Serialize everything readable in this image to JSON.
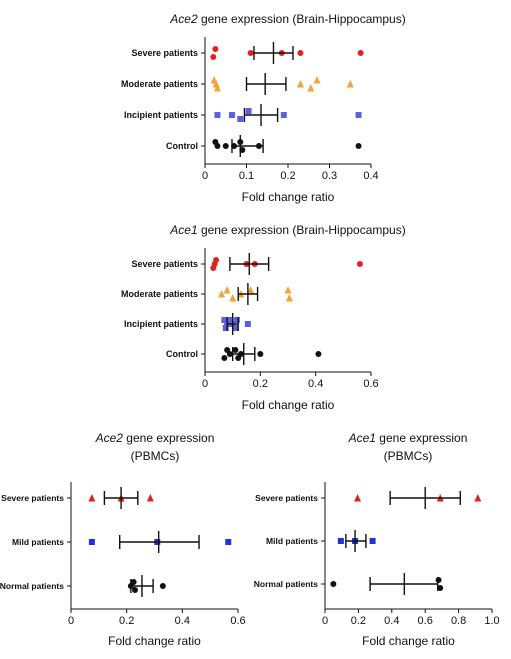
{
  "chart_data": [
    {
      "type": "scatter",
      "title_gene": "Ace2",
      "title_rest": "gene expression (Brain-Hippocampus)",
      "xlabel": "Fold change ratio",
      "xlim": [
        0,
        0.4
      ],
      "xticks": [
        0,
        0.1,
        0.2,
        0.3,
        0.4
      ],
      "xtick_labels": [
        "0",
        "0.1",
        "0.2",
        "0.3",
        "0.4"
      ],
      "categories": [
        "Severe patients",
        "Moderate patients",
        "Incipient patients",
        "Control"
      ],
      "series": [
        {
          "color": "#e0221f",
          "marker": "circle",
          "points": [
            0.02,
            0.025,
            0.11,
            0.185,
            0.23,
            0.375
          ],
          "jitter": [
            1,
            -1,
            0,
            0,
            0,
            0
          ],
          "mean": 0.165,
          "err": [
            0.118,
            0.212
          ]
        },
        {
          "color": "#f4a23c",
          "marker": "triangle",
          "points": [
            0.022,
            0.027,
            0.03,
            0.23,
            0.255,
            0.27,
            0.35
          ],
          "jitter": [
            -1,
            0,
            1,
            0,
            1,
            -1,
            0
          ],
          "mean": 0.145,
          "err": [
            0.1,
            0.195
          ]
        },
        {
          "color": "#5a60e0",
          "marker": "square",
          "points": [
            0.03,
            0.065,
            0.085,
            0.105,
            0.19,
            0.37
          ],
          "jitter": [
            0,
            0,
            1,
            -1,
            0,
            0
          ],
          "mean": 0.135,
          "err": [
            0.095,
            0.175
          ]
        },
        {
          "color": "#111111",
          "marker": "circle",
          "points": [
            0.025,
            0.03,
            0.05,
            0.07,
            0.085,
            0.09,
            0.13,
            0.37
          ],
          "jitter": [
            -1,
            0,
            0,
            0,
            -1,
            1,
            0,
            0
          ],
          "mean": 0.085,
          "err": [
            0.065,
            0.14
          ]
        }
      ]
    },
    {
      "type": "scatter",
      "title_gene": "Ace1",
      "title_rest": "gene expression (Brain-Hippocampus)",
      "xlabel": "Fold change ratio",
      "xlim": [
        0,
        0.6
      ],
      "xticks": [
        0,
        0.2,
        0.4,
        0.6
      ],
      "xtick_labels": [
        "0",
        "0.2",
        "0.4",
        "0.6"
      ],
      "categories": [
        "Severe patients",
        "Moderate patients",
        "Incipient patients",
        "Control"
      ],
      "series": [
        {
          "color": "#e0221f",
          "marker": "circle",
          "points": [
            0.03,
            0.035,
            0.04,
            0.15,
            0.18,
            0.56
          ],
          "jitter": [
            1,
            0,
            -1,
            0,
            0,
            0
          ],
          "mean": 0.16,
          "err": [
            0.09,
            0.23
          ]
        },
        {
          "color": "#f4a23c",
          "marker": "triangle",
          "points": [
            0.06,
            0.08,
            0.1,
            0.13,
            0.165,
            0.3,
            0.305
          ],
          "jitter": [
            0,
            -1,
            1,
            0,
            -1,
            -1,
            1
          ],
          "mean": 0.155,
          "err": [
            0.12,
            0.19
          ]
        },
        {
          "color": "#5a60e0",
          "marker": "square",
          "points": [
            0.07,
            0.075,
            0.08,
            0.09,
            0.1,
            0.11,
            0.115,
            0.155
          ],
          "jitter": [
            -1,
            1,
            0,
            -1,
            0,
            1,
            -1,
            0
          ],
          "mean": 0.1,
          "err": [
            0.08,
            0.12
          ]
        },
        {
          "color": "#111111",
          "marker": "circle",
          "points": [
            0.07,
            0.08,
            0.09,
            0.11,
            0.12,
            0.13,
            0.2,
            0.41
          ],
          "jitter": [
            1,
            -1,
            0,
            -1,
            1,
            0,
            0,
            0
          ],
          "mean": 0.14,
          "err": [
            0.1,
            0.18
          ]
        }
      ]
    },
    {
      "type": "scatter",
      "title_gene": "Ace2",
      "title_rest": "gene expression",
      "title_line2": "(PBMCs)",
      "xlabel": "Fold change ratio",
      "xlim": [
        0,
        0.6
      ],
      "xticks": [
        0,
        0.2,
        0.4,
        0.6
      ],
      "xtick_labels": [
        "0",
        "0.2",
        "0.4",
        "0.6"
      ],
      "categories": [
        "Severe patients",
        "Mild patients",
        "Normal patients"
      ],
      "series": [
        {
          "color": "#e0221f",
          "marker": "triangle",
          "points": [
            0.075,
            0.18,
            0.285
          ],
          "jitter": [
            0,
            0,
            0
          ],
          "mean": 0.18,
          "err": [
            0.12,
            0.24
          ]
        },
        {
          "color": "#1f33d6",
          "marker": "square",
          "points": [
            0.075,
            0.31,
            0.565
          ],
          "jitter": [
            0,
            0,
            0
          ],
          "mean": 0.315,
          "err": [
            0.175,
            0.46
          ]
        },
        {
          "color": "#111111",
          "marker": "circle",
          "points": [
            0.215,
            0.225,
            0.23,
            0.33
          ],
          "jitter": [
            0,
            -1,
            1,
            0
          ],
          "mean": 0.255,
          "err": [
            0.215,
            0.295
          ]
        }
      ]
    },
    {
      "type": "scatter",
      "title_gene": "Ace1",
      "title_rest": "gene expression",
      "title_line2": "(PBMCs)",
      "xlabel": "Fold change ratio",
      "xlim": [
        0,
        1.0
      ],
      "xticks": [
        0,
        0.2,
        0.4,
        0.6,
        0.8,
        1.0
      ],
      "xtick_labels": [
        "0",
        "0.2",
        "0.4",
        "0.6",
        "0.8",
        "1.0"
      ],
      "categories": [
        "Severe patients",
        "Mild patients",
        "Normal patients"
      ],
      "series": [
        {
          "color": "#e0221f",
          "marker": "triangle",
          "points": [
            0.195,
            0.69,
            0.915
          ],
          "jitter": [
            0,
            0,
            0
          ],
          "mean": 0.6,
          "err": [
            0.39,
            0.81
          ]
        },
        {
          "color": "#1f33d6",
          "marker": "square",
          "points": [
            0.095,
            0.18,
            0.285
          ],
          "jitter": [
            0,
            0,
            0
          ],
          "mean": 0.18,
          "err": [
            0.125,
            0.245
          ]
        },
        {
          "color": "#111111",
          "marker": "circle",
          "points": [
            0.05,
            0.68,
            0.69
          ],
          "jitter": [
            0,
            -1,
            1
          ],
          "mean": 0.475,
          "err": [
            0.27,
            0.675
          ]
        }
      ]
    }
  ]
}
